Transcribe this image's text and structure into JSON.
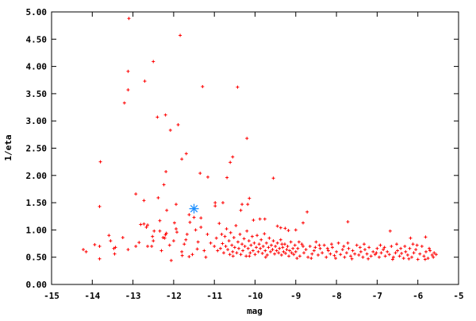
{
  "chart_data": {
    "type": "scatter",
    "title": "",
    "xlabel": "mag",
    "ylabel": "1/eta",
    "xlim": [
      -15,
      -5
    ],
    "ylim": [
      0,
      5
    ],
    "x_ticks": [
      "-15",
      "-14",
      "-13",
      "-12",
      "-11",
      "-10",
      "-9",
      "-8",
      "-7",
      "-6",
      "-5"
    ],
    "x_tick_values": [
      -15,
      -14,
      -13,
      -12,
      -11,
      -10,
      -9,
      -8,
      -7,
      -6,
      -5
    ],
    "y_ticks": [
      "0.00",
      "0.50",
      "1.00",
      "1.50",
      "2.00",
      "2.50",
      "3.00",
      "3.50",
      "4.00",
      "4.50",
      "5.00"
    ],
    "y_tick_values": [
      0,
      0.5,
      1,
      1.5,
      2,
      2.5,
      3,
      3.5,
      4,
      4.5,
      5
    ],
    "grid": false,
    "series": [
      {
        "color": "#ff0000",
        "marker": "plus",
        "points": [
          [
            -13.1,
            4.88
          ],
          [
            -11.84,
            4.57
          ],
          [
            -12.5,
            4.09
          ],
          [
            -13.12,
            3.91
          ],
          [
            -12.71,
            3.73
          ],
          [
            -11.29,
            3.63
          ],
          [
            -10.43,
            3.62
          ],
          [
            -13.12,
            3.57
          ],
          [
            -13.21,
            3.33
          ],
          [
            -12.4,
            3.07
          ],
          [
            -12.2,
            3.11
          ],
          [
            -11.89,
            2.93
          ],
          [
            -12.08,
            2.83
          ],
          [
            -13.8,
            2.25
          ],
          [
            -11.69,
            2.4
          ],
          [
            -11.8,
            2.3
          ],
          [
            -10.55,
            2.34
          ],
          [
            -10.61,
            2.24
          ],
          [
            -11.35,
            2.04
          ],
          [
            -11.16,
            1.97
          ],
          [
            -10.69,
            1.96
          ],
          [
            -12.19,
            2.07
          ],
          [
            -12.24,
            1.83
          ],
          [
            -12.93,
            1.66
          ],
          [
            -12.38,
            1.59
          ],
          [
            -12.73,
            1.54
          ],
          [
            -13.82,
            1.43
          ],
          [
            -11.94,
            1.47
          ],
          [
            -12.17,
            1.36
          ],
          [
            -10.98,
            1.5
          ],
          [
            -10.98,
            1.44
          ],
          [
            -10.79,
            1.5
          ],
          [
            -10.2,
            2.68
          ],
          [
            -9.55,
            1.95
          ],
          [
            -10.14,
            1.58
          ],
          [
            -10.32,
            1.47
          ],
          [
            -10.18,
            1.47
          ],
          [
            -10.35,
            1.36
          ],
          [
            -8.72,
            1.33
          ],
          [
            -8.82,
            1.13
          ],
          [
            -7.72,
            1.15
          ],
          [
            -6.68,
            0.98
          ],
          [
            -5.81,
            0.87
          ],
          [
            -6.18,
            0.85
          ],
          [
            -10.04,
            1.18
          ],
          [
            -9.88,
            1.2
          ],
          [
            -9.76,
            1.2
          ],
          [
            -9.45,
            1.07
          ],
          [
            -9.37,
            1.04
          ],
          [
            -9.26,
            1.03
          ],
          [
            -9.18,
            0.99
          ],
          [
            -9.0,
            1.0
          ],
          [
            -14.22,
            0.64
          ],
          [
            -14.15,
            0.6
          ],
          [
            -13.94,
            0.73
          ],
          [
            -13.82,
            0.7
          ],
          [
            -13.82,
            0.47
          ],
          [
            -13.59,
            0.9
          ],
          [
            -13.55,
            0.8
          ],
          [
            -13.47,
            0.66
          ],
          [
            -13.45,
            0.56
          ],
          [
            -13.43,
            0.68
          ],
          [
            -13.25,
            0.86
          ],
          [
            -13.12,
            0.64
          ],
          [
            -12.93,
            0.7
          ],
          [
            -12.85,
            0.77
          ],
          [
            -12.81,
            1.1
          ],
          [
            -12.73,
            1.11
          ],
          [
            -12.67,
            1.05
          ],
          [
            -12.64,
            1.09
          ],
          [
            -12.64,
            0.7
          ],
          [
            -12.54,
            0.7
          ],
          [
            -12.52,
            0.88
          ],
          [
            -12.5,
            0.8
          ],
          [
            -12.48,
            0.98
          ],
          [
            -12.34,
            1.17
          ],
          [
            -12.34,
            0.98
          ],
          [
            -12.26,
            0.86
          ],
          [
            -12.22,
            0.85
          ],
          [
            -12.2,
            0.91
          ],
          [
            -12.18,
            0.94
          ],
          [
            -12.06,
            0.44
          ],
          [
            -12.0,
            0.8
          ],
          [
            -11.98,
            1.13
          ],
          [
            -11.94,
            1.02
          ],
          [
            -11.92,
            0.96
          ],
          [
            -11.8,
            0.6
          ],
          [
            -11.79,
            0.53
          ],
          [
            -11.74,
            0.74
          ],
          [
            -11.67,
            0.92
          ],
          [
            -11.62,
            1.28
          ],
          [
            -11.62,
            0.51
          ],
          [
            -11.6,
            1.14
          ],
          [
            -11.54,
            0.55
          ],
          [
            -11.5,
            1.23
          ],
          [
            -11.46,
            1.0
          ],
          [
            -11.42,
            0.65
          ],
          [
            -11.33,
            1.22
          ],
          [
            -11.33,
            1.05
          ],
          [
            -11.21,
            0.5
          ],
          [
            -11.17,
            0.92
          ],
          [
            -11.09,
            0.76
          ],
          [
            -12.1,
            0.72
          ],
          [
            -12.3,
            0.62
          ],
          [
            -11.7,
            0.82
          ],
          [
            -11.4,
            0.78
          ],
          [
            -11.25,
            0.62
          ],
          [
            -11.0,
            0.7
          ],
          [
            -10.95,
            0.85
          ],
          [
            -10.92,
            0.62
          ],
          [
            -10.88,
            1.12
          ],
          [
            -10.85,
            0.66
          ],
          [
            -10.82,
            0.92
          ],
          [
            -10.8,
            0.75
          ],
          [
            -10.77,
            0.58
          ],
          [
            -10.74,
            0.88
          ],
          [
            -10.72,
            0.7
          ],
          [
            -10.7,
            1.02
          ],
          [
            -10.67,
            0.64
          ],
          [
            -10.64,
            0.8
          ],
          [
            -10.62,
            0.55
          ],
          [
            -10.6,
            0.95
          ],
          [
            -10.57,
            0.72
          ],
          [
            -10.55,
            0.6
          ],
          [
            -10.52,
            0.86
          ],
          [
            -10.5,
            0.68
          ],
          [
            -10.47,
            1.08
          ],
          [
            -10.45,
            0.58
          ],
          [
            -10.42,
            0.78
          ],
          [
            -10.4,
            0.66
          ],
          [
            -10.37,
            0.92
          ],
          [
            -10.35,
            0.55
          ],
          [
            -10.32,
            0.74
          ],
          [
            -10.3,
            0.62
          ],
          [
            -10.27,
            0.84
          ],
          [
            -10.25,
            0.7
          ],
          [
            -10.22,
            0.52
          ],
          [
            -10.2,
            0.98
          ],
          [
            -10.17,
            0.66
          ],
          [
            -10.15,
            0.8
          ],
          [
            -10.12,
            0.58
          ],
          [
            -10.1,
            0.72
          ],
          [
            -10.07,
            0.88
          ],
          [
            -10.05,
            0.62
          ],
          [
            -10.02,
            0.76
          ],
          [
            -10.0,
            0.55
          ],
          [
            -9.97,
            0.68
          ],
          [
            -9.95,
            0.9
          ],
          [
            -9.92,
            0.6
          ],
          [
            -9.9,
            0.74
          ],
          [
            -9.87,
            0.66
          ],
          [
            -9.85,
            0.82
          ],
          [
            -9.82,
            0.57
          ],
          [
            -9.8,
            0.7
          ],
          [
            -9.77,
            0.93
          ],
          [
            -9.75,
            0.62
          ],
          [
            -9.72,
            0.76
          ],
          [
            -9.7,
            0.54
          ],
          [
            -9.67,
            0.68
          ],
          [
            -9.65,
            0.85
          ],
          [
            -9.62,
            0.6
          ],
          [
            -9.6,
            0.72
          ],
          [
            -9.57,
            0.64
          ],
          [
            -9.55,
            0.8
          ],
          [
            -9.52,
            0.56
          ],
          [
            -9.5,
            0.7
          ],
          [
            -9.47,
            0.62
          ],
          [
            -9.45,
            0.76
          ],
          [
            -9.42,
            0.58
          ],
          [
            -9.4,
            0.66
          ],
          [
            -9.37,
            0.82
          ],
          [
            -9.35,
            0.54
          ],
          [
            -9.32,
            0.68
          ],
          [
            -9.3,
            0.6
          ],
          [
            -9.27,
            0.74
          ],
          [
            -9.25,
            0.57
          ],
          [
            -9.22,
            0.64
          ],
          [
            -9.2,
            0.7
          ],
          [
            -9.17,
            0.52
          ],
          [
            -9.15,
            0.62
          ],
          [
            -9.12,
            0.78
          ],
          [
            -9.1,
            0.58
          ],
          [
            -9.07,
            0.66
          ],
          [
            -9.05,
            0.55
          ],
          [
            -9.02,
            0.72
          ],
          [
            -9.0,
            0.6
          ],
          [
            -8.95,
            0.66
          ],
          [
            -8.9,
            0.52
          ],
          [
            -8.85,
            0.74
          ],
          [
            -8.8,
            0.58
          ],
          [
            -8.75,
            0.64
          ],
          [
            -8.7,
            0.5
          ],
          [
            -8.65,
            0.7
          ],
          [
            -8.6,
            0.56
          ],
          [
            -8.55,
            0.62
          ],
          [
            -8.5,
            0.78
          ],
          [
            -8.45,
            0.54
          ],
          [
            -8.4,
            0.66
          ],
          [
            -8.35,
            0.58
          ],
          [
            -8.3,
            0.72
          ],
          [
            -8.25,
            0.5
          ],
          [
            -8.2,
            0.62
          ],
          [
            -8.15,
            0.56
          ],
          [
            -8.1,
            0.68
          ],
          [
            -8.05,
            0.53
          ],
          [
            -8.0,
            0.6
          ],
          [
            -7.95,
            0.76
          ],
          [
            -7.9,
            0.55
          ],
          [
            -7.85,
            0.64
          ],
          [
            -7.8,
            0.5
          ],
          [
            -7.75,
            0.58
          ],
          [
            -7.7,
            0.66
          ],
          [
            -7.65,
            0.52
          ],
          [
            -7.6,
            0.62
          ],
          [
            -7.55,
            0.56
          ],
          [
            -7.5,
            0.72
          ],
          [
            -7.45,
            0.54
          ],
          [
            -7.4,
            0.6
          ],
          [
            -7.35,
            0.5
          ],
          [
            -7.3,
            0.64
          ],
          [
            -7.25,
            0.56
          ],
          [
            -7.2,
            0.68
          ],
          [
            -7.15,
            0.52
          ],
          [
            -7.1,
            0.6
          ],
          [
            -7.05,
            0.55
          ],
          [
            -7.0,
            0.66
          ],
          [
            -6.95,
            0.5
          ],
          [
            -6.9,
            0.58
          ],
          [
            -6.85,
            0.64
          ],
          [
            -6.8,
            0.52
          ],
          [
            -6.75,
            0.6
          ],
          [
            -6.7,
            0.55
          ],
          [
            -6.65,
            0.7
          ],
          [
            -6.6,
            0.5
          ],
          [
            -6.55,
            0.58
          ],
          [
            -6.5,
            0.62
          ],
          [
            -6.45,
            0.52
          ],
          [
            -6.4,
            0.57
          ],
          [
            -6.35,
            0.48
          ],
          [
            -6.3,
            0.6
          ],
          [
            -6.25,
            0.54
          ],
          [
            -6.2,
            0.66
          ],
          [
            -6.15,
            0.5
          ],
          [
            -6.1,
            0.58
          ],
          [
            -6.05,
            0.64
          ],
          [
            -6.0,
            0.46
          ],
          [
            -5.95,
            0.56
          ],
          [
            -5.9,
            0.7
          ],
          [
            -5.85,
            0.52
          ],
          [
            -5.8,
            0.6
          ],
          [
            -5.75,
            0.48
          ],
          [
            -5.7,
            0.62
          ],
          [
            -5.65,
            0.54
          ],
          [
            -5.6,
            0.58
          ],
          [
            -5.55,
            0.55
          ],
          [
            -8.97,
            0.48
          ],
          [
            -8.82,
            0.7
          ],
          [
            -8.62,
            0.48
          ],
          [
            -8.42,
            0.72
          ],
          [
            -8.22,
            0.66
          ],
          [
            -8.02,
            0.48
          ],
          [
            -7.82,
            0.7
          ],
          [
            -7.62,
            0.47
          ],
          [
            -7.42,
            0.68
          ],
          [
            -7.22,
            0.47
          ],
          [
            -7.02,
            0.58
          ],
          [
            -6.82,
            0.68
          ],
          [
            -6.62,
            0.46
          ],
          [
            -6.42,
            0.66
          ],
          [
            -6.22,
            0.47
          ],
          [
            -6.02,
            0.72
          ],
          [
            -5.82,
            0.46
          ],
          [
            -5.72,
            0.66
          ],
          [
            -5.62,
            0.5
          ],
          [
            -6.12,
            0.74
          ],
          [
            -6.32,
            0.7
          ],
          [
            -6.52,
            0.74
          ],
          [
            -6.92,
            0.72
          ],
          [
            -7.32,
            0.74
          ],
          [
            -7.72,
            0.76
          ],
          [
            -8.12,
            0.74
          ],
          [
            -8.52,
            0.68
          ],
          [
            -8.92,
            0.78
          ],
          [
            -9.34,
            0.74
          ],
          [
            -9.74,
            0.5
          ],
          [
            -10.14,
            0.52
          ],
          [
            -10.54,
            0.52
          ]
        ]
      },
      {
        "color": "#1e90ff",
        "marker": "star",
        "points": [
          [
            -11.5,
            1.39
          ]
        ]
      }
    ]
  }
}
